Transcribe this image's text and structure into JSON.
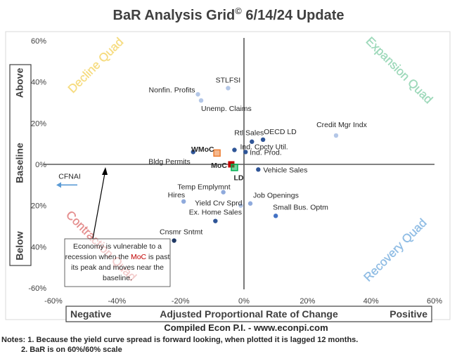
{
  "chart_data": {
    "type": "scatter",
    "title": "BaR Analysis Grid",
    "title_mark": "©",
    "title_suffix": " 6/14/24 Update",
    "xlim": [
      -60,
      60
    ],
    "ylim": [
      -60,
      60
    ],
    "x_ticks": [
      -60,
      -40,
      -20,
      0,
      20,
      40,
      60
    ],
    "y_ticks": [
      -60,
      -40,
      -20,
      0,
      20,
      40,
      60
    ],
    "x_tick_labels": [
      "-60%",
      "-40%",
      "-20%",
      "0%",
      "20%",
      "40%",
      "60%"
    ],
    "y_tick_labels": [
      "-60%",
      "-40%",
      "-20%",
      "0%",
      "20%",
      "40%",
      "60%"
    ],
    "xlabel": "Adjusted Proportional Rate of Change",
    "xlabel_left": "Negative",
    "xlabel_right": "Positive",
    "ylabel_top": "Above",
    "ylabel_mid": "Baseline",
    "ylabel_bottom": "Below",
    "quadrants": [
      {
        "name": "Decline Quad",
        "position": "top-left",
        "color": "#F5D76E"
      },
      {
        "name": "Expansion Quad",
        "position": "top-right",
        "color": "#8FD3B0"
      },
      {
        "name": "Contraction Quad",
        "position": "bottom-left",
        "color": "#E07C7C"
      },
      {
        "name": "Recovery Quad",
        "position": "bottom-right",
        "color": "#7FB3E0"
      }
    ],
    "points": [
      {
        "label": "STLFSI",
        "x": -5,
        "y": 37,
        "color": "#B4C7E7"
      },
      {
        "label": "Nonfin. Profits",
        "x": -14.5,
        "y": 34,
        "color": "#B4C7E7"
      },
      {
        "label": "Unemp. Claims",
        "x": -13.5,
        "y": 31,
        "color": "#B4C7E7"
      },
      {
        "label": "Credit Mgr Indx",
        "x": 29,
        "y": 14,
        "color": "#B4C7E7"
      },
      {
        "label": "OECD LD",
        "x": 6,
        "y": 12,
        "color": "#2F5597"
      },
      {
        "label": "Rtl Sales",
        "x": 2.5,
        "y": 11,
        "color": "#2F5597"
      },
      {
        "label": "Ind. Cpcty Util.",
        "x": -3,
        "y": 7,
        "color": "#2F5597"
      },
      {
        "label": "Ind. Prod.",
        "x": 0.5,
        "y": 6,
        "color": "#2F5597"
      },
      {
        "label": "Bldg Permits",
        "x": -16,
        "y": 6,
        "color": "#2F5597"
      },
      {
        "label": "WMoC",
        "x": -8.5,
        "y": 5.5,
        "color": "#ED7D31",
        "style": "box"
      },
      {
        "label": "MoC",
        "x": -4,
        "y": 0,
        "color": "#C00000",
        "style": "square"
      },
      {
        "label": "LD",
        "x": -3,
        "y": -1.5,
        "color": "#00B050",
        "style": "box"
      },
      {
        "label": "Vehicle Sales",
        "x": 4.5,
        "y": -2.5,
        "color": "#2F5597"
      },
      {
        "label": "Temp Emplymnt",
        "x": -6.5,
        "y": -13.5,
        "color": "#8FAADC"
      },
      {
        "label": "Hires",
        "x": -19,
        "y": -18,
        "color": "#8FAADC"
      },
      {
        "label": "Yield Crv Sprd",
        "x": -1,
        "y": -20,
        "color": "#B4C7E7"
      },
      {
        "label": "Job Openings",
        "x": 2,
        "y": -19,
        "color": "#8FAADC"
      },
      {
        "label": "Ex. Home Sales",
        "x": -9,
        "y": -27.5,
        "color": "#2F5597"
      },
      {
        "label": "Small Bus. Optm",
        "x": 10,
        "y": -25,
        "color": "#4472C4"
      },
      {
        "label": "Cnsmr Sntmt",
        "x": -22,
        "y": -37,
        "color": "#1F3864"
      },
      {
        "label": "CFNAI",
        "x": -60,
        "y": -10,
        "color": "#5B9BD5",
        "style": "arrow"
      }
    ],
    "annotation": {
      "lines": [
        [
          {
            "text": "Economy is vulnerable to a"
          }
        ],
        [
          {
            "text": "recession when the "
          },
          {
            "text": "MoC",
            "color": "#C00000"
          },
          {
            "text": " is past"
          }
        ],
        [
          {
            "text": "its peak and moves near the"
          }
        ],
        [
          {
            "text": "baseline."
          }
        ]
      ]
    },
    "footer": "Compiled Econ P.I. - www.econpi.com",
    "notes": [
      "Notes: 1. Because the yield curve spread is forward looking, when plotted it is lagged 12 months.",
      "2. BaR is on 60%/60% scale"
    ]
  }
}
